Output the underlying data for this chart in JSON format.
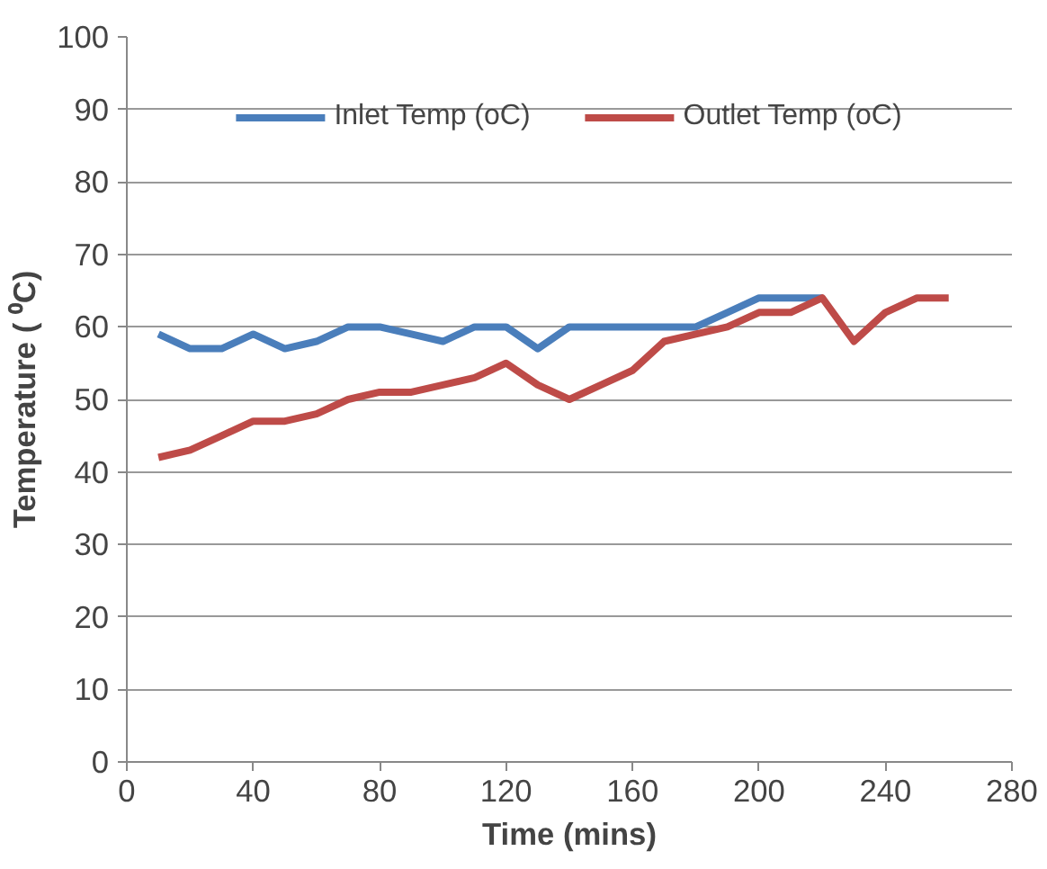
{
  "chart_data": {
    "type": "line",
    "xlabel": "Time (mins)",
    "ylabel": "Temperature ( ⁰C)",
    "x": [
      10,
      20,
      30,
      40,
      50,
      60,
      70,
      80,
      90,
      100,
      110,
      120,
      130,
      140,
      150,
      160,
      170,
      180,
      190,
      200,
      210,
      220,
      230,
      240,
      250,
      260
    ],
    "series": [
      {
        "name": "Inlet Temp (oC)",
        "color": "#4a7ebb",
        "values": [
          59,
          57,
          57,
          59,
          57,
          58,
          60,
          60,
          59,
          58,
          60,
          60,
          57,
          60,
          60,
          60,
          60,
          60,
          62,
          64,
          64,
          64,
          null,
          null,
          null,
          null
        ]
      },
      {
        "name": "Outlet Temp (oC)",
        "color": "#be4b48",
        "values": [
          42,
          43,
          45,
          47,
          47,
          48,
          50,
          51,
          51,
          52,
          53,
          55,
          52,
          50,
          52,
          54,
          58,
          59,
          60,
          62,
          62,
          64,
          58,
          62,
          64,
          64
        ]
      }
    ],
    "xlim": [
      0,
      280
    ],
    "xticks": [
      0,
      40,
      80,
      120,
      160,
      200,
      240,
      280
    ],
    "ylim": [
      0,
      100
    ],
    "yticks": [
      0,
      10,
      20,
      30,
      40,
      50,
      60,
      70,
      80,
      90,
      100
    ],
    "grid": "y",
    "legend": "top",
    "marker": "none",
    "line_style": "solid"
  }
}
